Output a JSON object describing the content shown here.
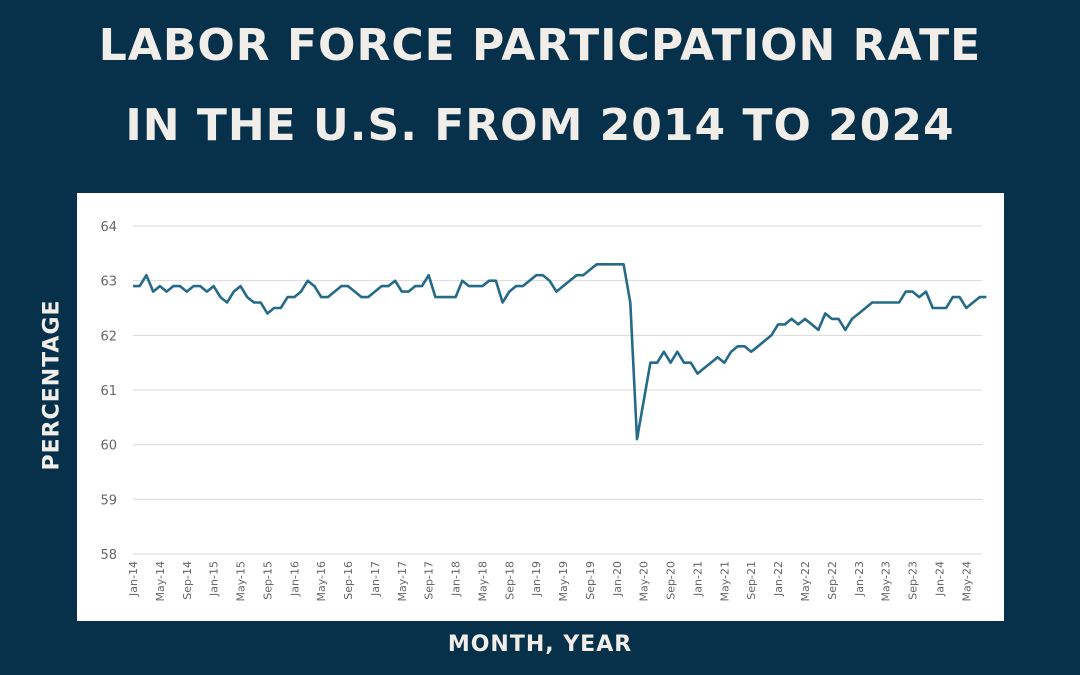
{
  "title_line1": "LABOR FORCE PARTICPATION RATE",
  "title_line2": "IN THE U.S. FROM 2014 TO 2024",
  "chart_data": {
    "type": "line",
    "title": "LABOR FORCE PARTICPATION RATE IN THE U.S. FROM 2014 TO 2024",
    "xlabel": "MONTH, YEAR",
    "ylabel": "PERCENTAGE",
    "ylim": [
      58,
      64
    ],
    "yticks": [
      58,
      59,
      60,
      61,
      62,
      63,
      64
    ],
    "grid": true,
    "line_color": "#256b89",
    "x_start": "Jan-14",
    "x_tick_labels": [
      "Jan-14",
      "May-14",
      "Sep-14",
      "Jan-15",
      "May-15",
      "Sep-15",
      "Jan-16",
      "May-16",
      "Sep-16",
      "Jan-17",
      "May-17",
      "Sep-17",
      "Jan-18",
      "May-18",
      "Sep-18",
      "Jan-19",
      "May-19",
      "Sep-19",
      "Jan-20",
      "May-20",
      "Sep-20",
      "Jan-21",
      "May-21",
      "Sep-21",
      "Jan-22",
      "May-22",
      "Sep-22",
      "Jan-23",
      "May-23",
      "Sep-23",
      "Jan-24",
      "May-24"
    ],
    "values": [
      62.9,
      62.9,
      63.1,
      62.8,
      62.9,
      62.8,
      62.9,
      62.9,
      62.8,
      62.9,
      62.9,
      62.8,
      62.9,
      62.7,
      62.6,
      62.8,
      62.9,
      62.7,
      62.6,
      62.6,
      62.4,
      62.5,
      62.5,
      62.7,
      62.7,
      62.8,
      63.0,
      62.9,
      62.7,
      62.7,
      62.8,
      62.9,
      62.9,
      62.8,
      62.7,
      62.7,
      62.8,
      62.9,
      62.9,
      63.0,
      62.8,
      62.8,
      62.9,
      62.9,
      63.1,
      62.7,
      62.7,
      62.7,
      62.7,
      63.0,
      62.9,
      62.9,
      62.9,
      63.0,
      63.0,
      62.6,
      62.8,
      62.9,
      62.9,
      63.0,
      63.1,
      63.1,
      63.0,
      62.8,
      62.9,
      63.0,
      63.1,
      63.1,
      63.2,
      63.3,
      63.3,
      63.3,
      63.3,
      63.3,
      62.6,
      60.1,
      60.8,
      61.5,
      61.5,
      61.7,
      61.5,
      61.7,
      61.5,
      61.5,
      61.3,
      61.4,
      61.5,
      61.6,
      61.5,
      61.7,
      61.8,
      61.8,
      61.7,
      61.8,
      61.9,
      62.0,
      62.2,
      62.2,
      62.3,
      62.2,
      62.3,
      62.2,
      62.1,
      62.4,
      62.3,
      62.3,
      62.1,
      62.3,
      62.4,
      62.5,
      62.6,
      62.6,
      62.6,
      62.6,
      62.6,
      62.8,
      62.8,
      62.7,
      62.8,
      62.5,
      62.5,
      62.5,
      62.7,
      62.7,
      62.5,
      62.6,
      62.7,
      62.7
    ]
  }
}
